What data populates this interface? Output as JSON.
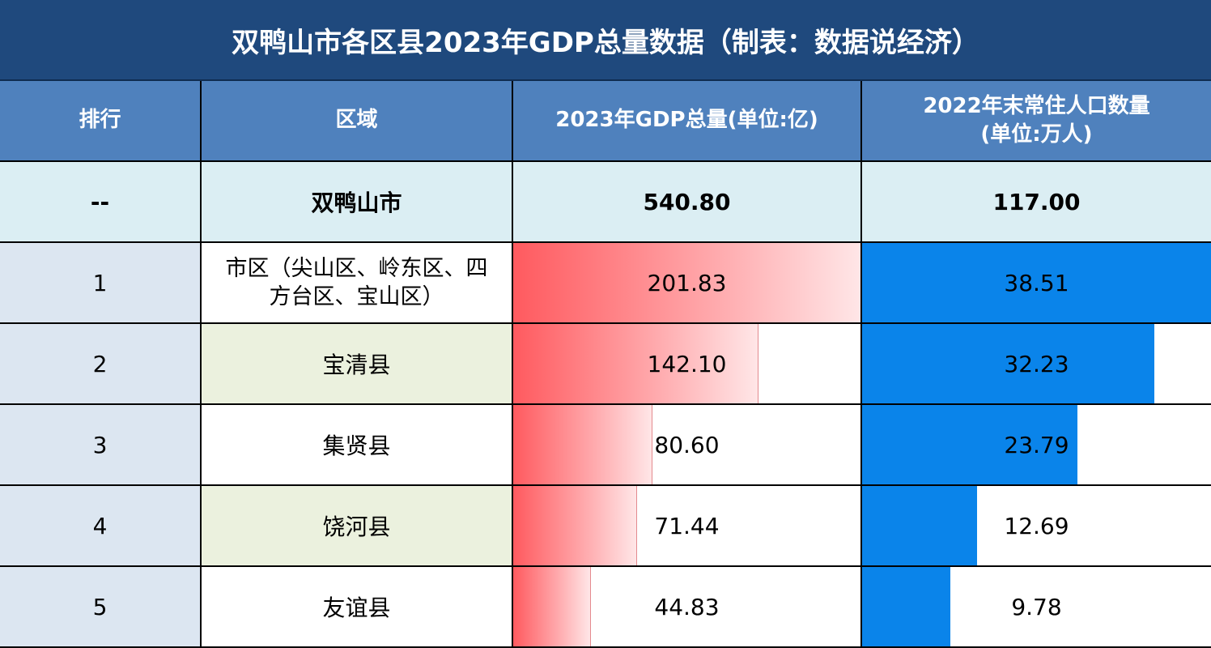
{
  "title": "双鸭山市各区县2023年GDP总量数据（制表：数据说经济）",
  "headers": [
    "排行",
    "区域",
    "2023年GDP总量(单位:亿)",
    "2022年末常住人口数量",
    "(单位:万人)"
  ],
  "colors": {
    "title_bg": "#1f497d",
    "header_bg": "#4f81bd",
    "gdp_bar": "#ff5a5f",
    "pop_bar": "#0a84ea"
  },
  "total": {
    "rank": "--",
    "region": "双鸭山市",
    "gdp": "540.80",
    "population": "117.00"
  },
  "chart_data": {
    "type": "table",
    "title": "双鸭山市各区县2023年GDP总量数据（制表：数据说经济）",
    "columns": [
      "排行",
      "区域",
      "2023年GDP总量(单位:亿)",
      "2022年末常住人口数量(单位:万人)"
    ],
    "gdp_bar_max": 201.83,
    "population_bar_max": 38.51,
    "rows": [
      {
        "rank": "1",
        "region_line1": "市区（尖山区、岭东区、四",
        "region_line2": "方台区、宝山区）",
        "gdp": 201.83,
        "gdp_label": "201.83",
        "population": 38.51,
        "population_label": "38.51"
      },
      {
        "rank": "2",
        "region": "宝清县",
        "gdp": 142.1,
        "gdp_label": "142.10",
        "population": 32.23,
        "population_label": "32.23"
      },
      {
        "rank": "3",
        "region": "集贤县",
        "gdp": 80.6,
        "gdp_label": "80.60",
        "population": 23.79,
        "population_label": "23.79"
      },
      {
        "rank": "4",
        "region": "饶河县",
        "gdp": 71.44,
        "gdp_label": "71.44",
        "population": 12.69,
        "population_label": "12.69"
      },
      {
        "rank": "5",
        "region": "友谊县",
        "gdp": 44.83,
        "gdp_label": "44.83",
        "population": 9.78,
        "population_label": "9.78"
      }
    ]
  }
}
